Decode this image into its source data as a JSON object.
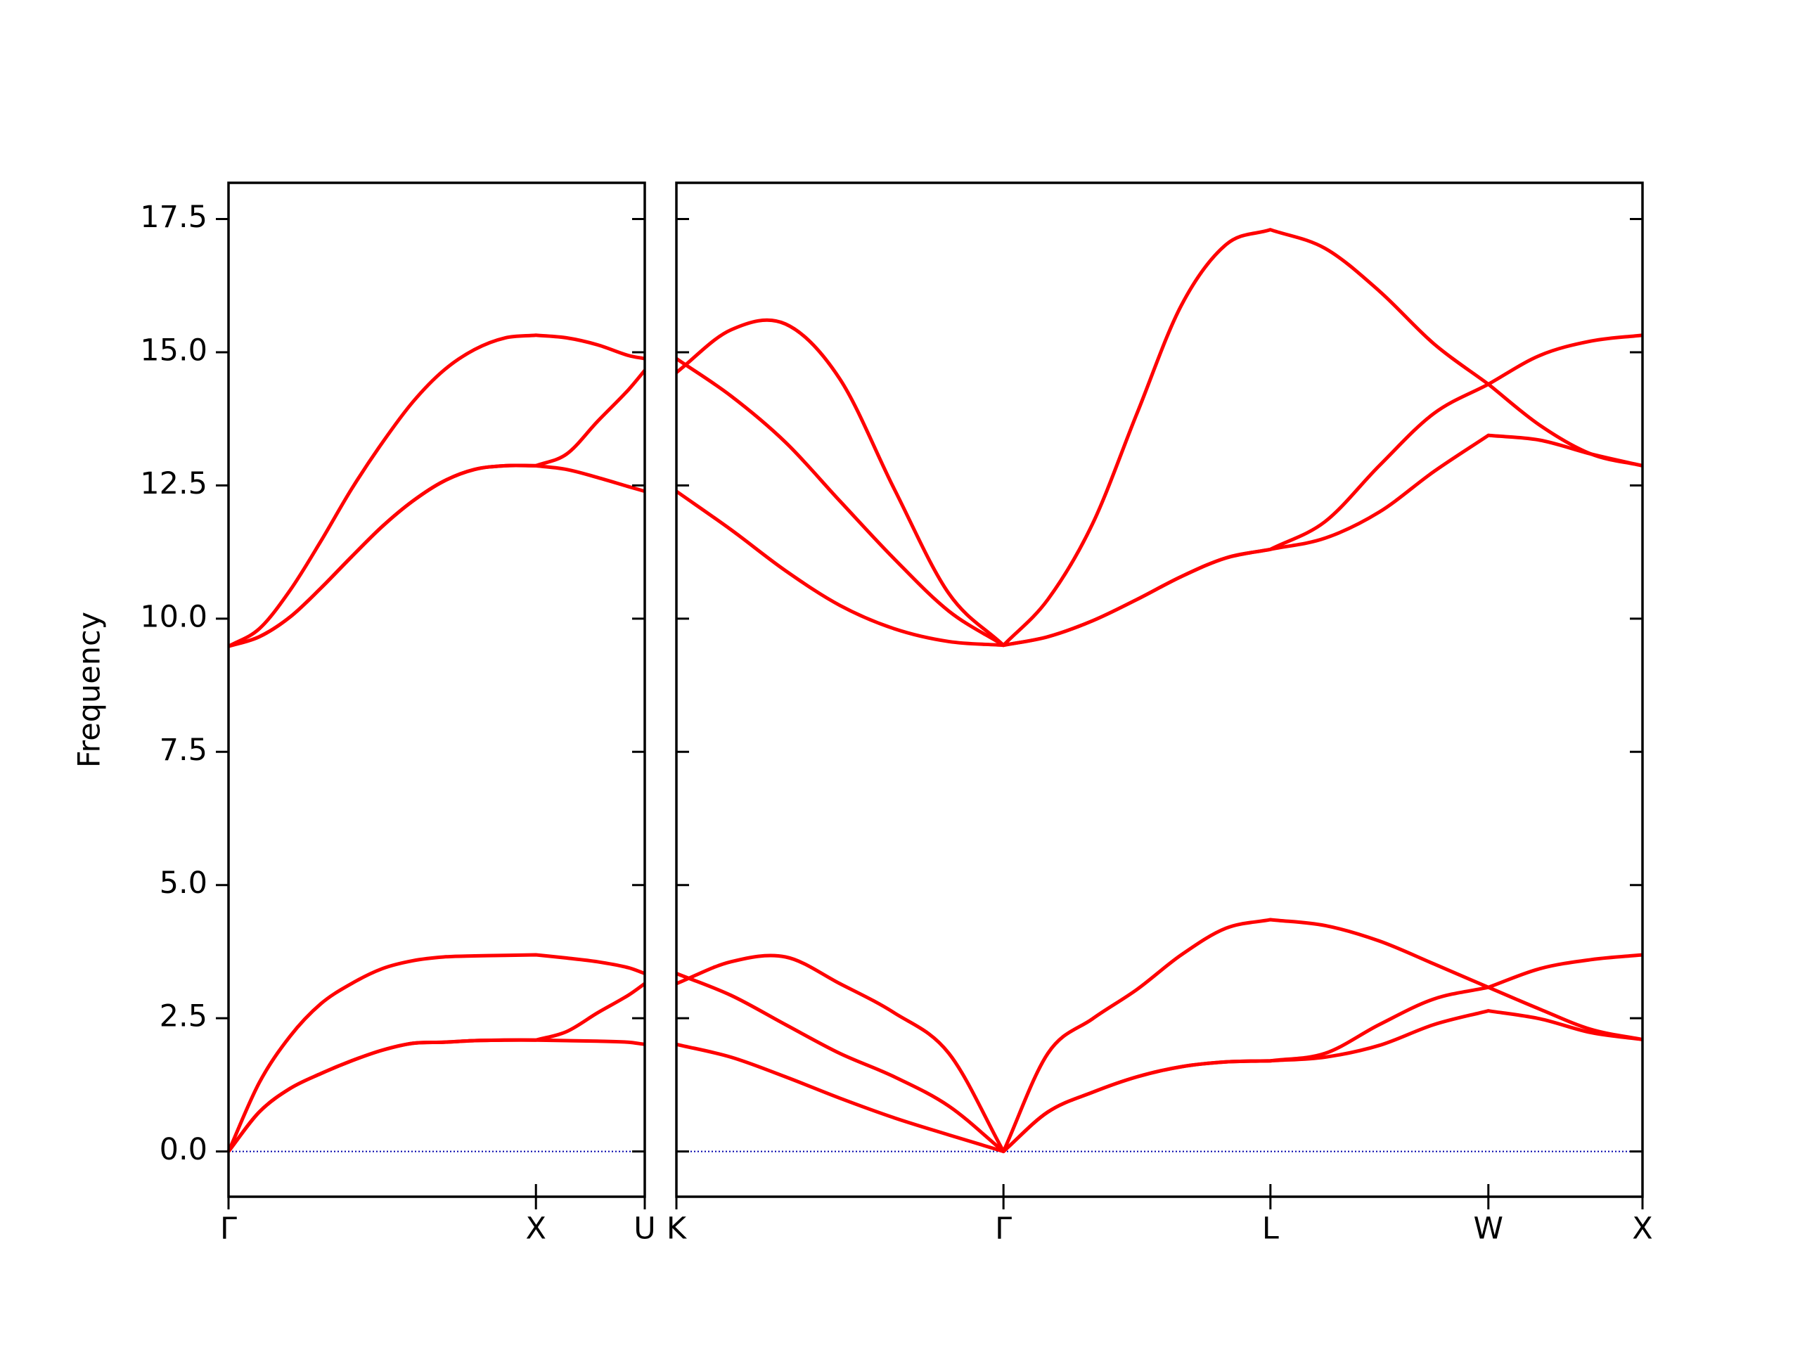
{
  "chart_data": [
    {
      "type": "line",
      "ylabel": "Frequency",
      "color": "#ff0000",
      "x": [
        0,
        0.1,
        0.2,
        0.3,
        0.4,
        0.5,
        0.6,
        0.7,
        0.8,
        0.9,
        1.0,
        1.1,
        1.2,
        1.3,
        1.354
      ],
      "series": [
        {
          "values": [
            0,
            1.29,
            2.16,
            2.77,
            3.15,
            3.43,
            3.58,
            3.65,
            3.67,
            3.68,
            3.69,
            3.63,
            3.56,
            3.45,
            3.34
          ]
        },
        {
          "values": [
            0,
            0.74,
            1.18,
            1.46,
            1.7,
            1.9,
            2.03,
            2.05,
            2.08,
            2.09,
            2.09,
            2.25,
            2.6,
            2.93,
            3.15
          ]
        },
        {
          "values": [
            0,
            0.74,
            1.18,
            1.46,
            1.7,
            1.9,
            2.03,
            2.05,
            2.08,
            2.09,
            2.09,
            2.08,
            2.07,
            2.05,
            2.01
          ]
        },
        {
          "values": [
            9.48,
            9.81,
            10.53,
            11.45,
            12.43,
            13.3,
            14.07,
            14.66,
            15.05,
            15.27,
            15.32,
            15.27,
            15.14,
            14.94,
            14.88
          ]
        },
        {
          "values": [
            9.48,
            9.66,
            10.03,
            10.57,
            11.16,
            11.73,
            12.21,
            12.58,
            12.8,
            12.87,
            12.87,
            13.09,
            13.7,
            14.29,
            14.66
          ]
        },
        {
          "values": [
            9.48,
            9.66,
            10.03,
            10.57,
            11.16,
            11.73,
            12.21,
            12.58,
            12.8,
            12.87,
            12.87,
            12.8,
            12.65,
            12.48,
            12.39
          ]
        }
      ],
      "xlim": [
        0,
        1.354
      ],
      "ylim": [
        -0.85,
        18.18
      ],
      "xticks": [
        {
          "value": 0,
          "label": "Γ"
        },
        {
          "value": 1.0,
          "label": "X"
        },
        {
          "value": 1.354,
          "label": "U"
        }
      ],
      "yticks": [
        {
          "value": 0,
          "label": "0.0"
        },
        2.5,
        {
          "value": 5,
          "label": "5.0"
        },
        7.5,
        {
          "value": 10,
          "label": "10.0"
        },
        12.5,
        {
          "value": 15,
          "label": "15.0"
        },
        17.5
      ],
      "hline": 0,
      "hline_color": "#0000aa"
    },
    {
      "type": "line",
      "color": "#ff0000",
      "x": [
        1.354,
        1.531,
        1.708,
        1.884,
        2.061,
        2.238,
        2.415,
        2.559,
        2.704,
        2.848,
        2.992,
        3.137,
        3.281,
        3.458,
        3.634,
        3.811,
        3.988,
        4.155,
        4.321,
        4.488
      ],
      "series": [
        {
          "values": [
            3.15,
            3.56,
            3.65,
            3.15,
            2.6,
            1.84,
            0,
            1.84,
            2.49,
            3.04,
            3.69,
            4.19,
            4.35,
            4.24,
            3.95,
            3.52,
            3.08,
            2.67,
            2.29,
            2.1
          ]
        },
        {
          "values": [
            3.34,
            2.93,
            2.38,
            1.84,
            1.4,
            0.85,
            0,
            0.74,
            1.11,
            1.4,
            1.59,
            1.68,
            1.7,
            1.84,
            2.38,
            2.86,
            3.08,
            3.43,
            3.6,
            3.69
          ]
        },
        {
          "values": [
            2.01,
            1.77,
            1.4,
            1.0,
            0.63,
            0.31,
            0,
            0.74,
            1.11,
            1.4,
            1.59,
            1.68,
            1.7,
            1.77,
            1.99,
            2.38,
            2.64,
            2.49,
            2.23,
            2.1
          ]
        },
        {
          "values": [
            14.62,
            15.42,
            15.53,
            14.5,
            12.43,
            10.47,
            9.5,
            10.36,
            11.78,
            13.85,
            15.88,
            17.02,
            17.3,
            16.95,
            16.15,
            15.16,
            14.4,
            13.63,
            13.09,
            12.87
          ]
        },
        {
          "values": [
            14.88,
            14.18,
            13.31,
            12.21,
            11.12,
            10.14,
            9.5,
            9.66,
            9.96,
            10.36,
            10.79,
            11.14,
            11.3,
            11.82,
            12.87,
            13.85,
            14.4,
            14.94,
            15.21,
            15.32
          ]
        },
        {
          "values": [
            12.39,
            11.67,
            10.9,
            10.25,
            9.81,
            9.57,
            9.5,
            9.66,
            9.96,
            10.36,
            10.79,
            11.14,
            11.3,
            11.51,
            12.0,
            12.76,
            13.44,
            13.35,
            13.09,
            12.87
          ]
        }
      ],
      "xlim": [
        1.354,
        4.488
      ],
      "ylim": [
        -0.85,
        18.18
      ],
      "xticks": [
        {
          "value": 1.354,
          "label": "K"
        },
        {
          "value": 2.415,
          "label": "Γ"
        },
        {
          "value": 3.281,
          "label": "L"
        },
        {
          "value": 3.988,
          "label": "W"
        },
        {
          "value": 4.488,
          "label": "X"
        }
      ],
      "yticks": [
        0,
        2.5,
        5,
        7.5,
        10,
        12.5,
        15,
        17.5
      ],
      "hline": 0,
      "hline_color": "#0000aa"
    }
  ]
}
